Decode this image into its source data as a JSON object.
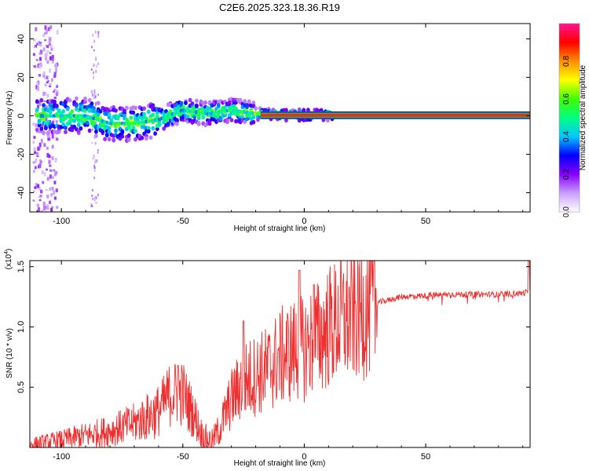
{
  "title": "C2E6.2025.323.18.36.R19",
  "chart_data": [
    {
      "type": "heatmap",
      "name": "spectrogram",
      "xlabel": "Height of straight line (km)",
      "ylabel": "Frequency (Hz)",
      "xlim": [
        -113,
        93
      ],
      "ylim": [
        -50,
        48
      ],
      "xticks": [
        -100,
        -50,
        0,
        50
      ],
      "xtick_labels": [
        "-100",
        "-50",
        "0",
        "50"
      ],
      "yticks": [
        -40,
        -20,
        0,
        20,
        40
      ],
      "ytick_labels": [
        "-40",
        "-20",
        "0",
        "20",
        "40"
      ],
      "ridge": {
        "x": [
          -110,
          -100,
          -90,
          -80,
          -70,
          -60,
          -50,
          -45,
          -40,
          -30,
          -20,
          -10,
          0,
          10,
          93
        ],
        "freq": [
          0,
          0,
          0,
          -4,
          -4,
          -2,
          3,
          2,
          1,
          3,
          1,
          0.5,
          0.3,
          0.3,
          0.3
        ]
      },
      "colorbar": {
        "label": "Normalized spectral amplitude",
        "range": [
          0,
          1
        ],
        "ticks": [
          0.0,
          0.2,
          0.4,
          0.6,
          0.8
        ],
        "tick_labels": [
          "0.0",
          "0.2",
          "0.4",
          "0.6",
          "0.8"
        ],
        "colors": [
          "#ffffff",
          "#c8a0ff",
          "#8800ff",
          "#0000ff",
          "#00c8ff",
          "#00ff80",
          "#40ff00",
          "#ffff00",
          "#ff9000",
          "#ff0000",
          "#ff1493"
        ]
      }
    },
    {
      "type": "line",
      "name": "snr",
      "xlabel": "Height of straight line (km)",
      "ylabel": "SNR (10 * v/v)",
      "multiplier": "(x10",
      "multiplier_exp": "4",
      "xlim": [
        -113,
        93
      ],
      "ylim": [
        0,
        1.55
      ],
      "xticks": [
        -100,
        -50,
        0,
        50
      ],
      "xtick_labels": [
        "-100",
        "-50",
        "0",
        "50"
      ],
      "yticks": [
        0.5,
        1.0,
        1.5
      ],
      "ytick_labels": [
        "0.5",
        "1.0",
        "1.5"
      ],
      "color": "#ee3030",
      "envelope": {
        "x": [
          -113,
          -100,
          -90,
          -80,
          -70,
          -60,
          -55,
          -50,
          -45,
          -42,
          -38,
          -35,
          -30,
          -25,
          -20,
          -15,
          -10,
          -5,
          0,
          5,
          10,
          20,
          30,
          40,
          50,
          60,
          70,
          80,
          90,
          93
        ],
        "y": [
          0.02,
          0.06,
          0.1,
          0.14,
          0.2,
          0.3,
          0.45,
          0.45,
          0.25,
          0.1,
          0.05,
          0.15,
          0.4,
          0.55,
          0.6,
          0.65,
          0.75,
          0.8,
          0.82,
          0.9,
          1.0,
          1.1,
          1.2,
          1.25,
          1.26,
          1.27,
          1.27,
          1.27,
          1.28,
          1.3
        ]
      },
      "spikes": [
        {
          "x": -52,
          "y": 0.68
        },
        {
          "x": -25,
          "y": 1.05
        },
        {
          "x": -2,
          "y": 1.47
        },
        {
          "x": 4,
          "y": 1.35
        },
        {
          "x": 92.5,
          "y": 1.55
        }
      ]
    }
  ]
}
